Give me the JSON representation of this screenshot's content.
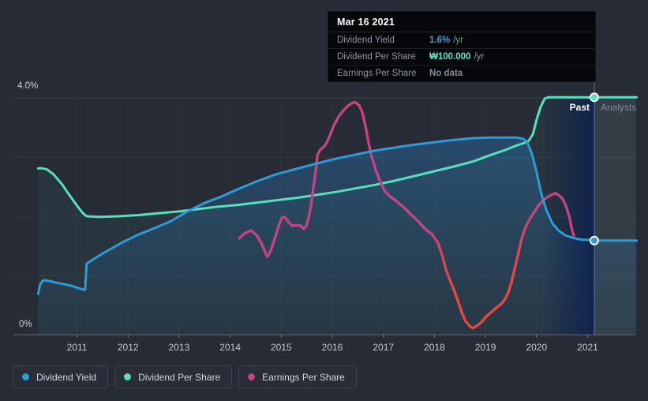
{
  "tooltip": {
    "title": "Mar 16 2021",
    "rows": [
      {
        "label": "Dividend Yield",
        "value": "1.6%",
        "unit": "/yr",
        "value_color": "#3ba1e3"
      },
      {
        "label": "Dividend Per Share",
        "value": "₩100.000",
        "unit": "/yr",
        "value_color": "#65e2c7"
      },
      {
        "label": "Earnings Per Share",
        "value": "No data",
        "unit": "",
        "value_color": "#858c96"
      }
    ]
  },
  "legend": {
    "items": [
      {
        "label": "Dividend Yield",
        "color": "#2e9bd6"
      },
      {
        "label": "Dividend Per Share",
        "color": "#57dfbe"
      },
      {
        "label": "Earnings Per Share",
        "color": "#c64383"
      }
    ]
  },
  "chart_data": {
    "type": "line",
    "title": "",
    "x_ticks": [
      "2011",
      "2012",
      "2013",
      "2014",
      "2015",
      "2016",
      "2017",
      "2018",
      "2019",
      "2020",
      "2021"
    ],
    "x_range": [
      2010.2,
      2021.96
    ],
    "ylim": [
      0,
      4
    ],
    "y_tick_labels": {
      "top": "4.0%",
      "bottom": "0%"
    },
    "grid": true,
    "legend_position": "bottom",
    "divider": {
      "year": 2021.13,
      "past": "Past",
      "future": "Analysts"
    },
    "series": [
      {
        "name": "Dividend Yield",
        "color": "#2e9bd6",
        "width": 3,
        "area": "blue",
        "points": [
          [
            2010.24,
            0.69
          ],
          [
            2010.28,
            0.85
          ],
          [
            2010.34,
            0.92
          ],
          [
            2010.45,
            0.91
          ],
          [
            2010.65,
            0.87
          ],
          [
            2010.88,
            0.83
          ],
          [
            2011.09,
            0.77
          ],
          [
            2011.16,
            0.76
          ],
          [
            2011.18,
            1.05
          ],
          [
            2011.19,
            1.2
          ],
          [
            2011.35,
            1.29
          ],
          [
            2011.58,
            1.41
          ],
          [
            2011.89,
            1.56
          ],
          [
            2012.2,
            1.69
          ],
          [
            2012.52,
            1.8
          ],
          [
            2012.82,
            1.91
          ],
          [
            2013.16,
            2.08
          ],
          [
            2013.51,
            2.23
          ],
          [
            2013.82,
            2.33
          ],
          [
            2014.13,
            2.45
          ],
          [
            2014.52,
            2.59
          ],
          [
            2014.9,
            2.71
          ],
          [
            2015.29,
            2.8
          ],
          [
            2015.68,
            2.89
          ],
          [
            2016.06,
            2.97
          ],
          [
            2016.45,
            3.04
          ],
          [
            2016.83,
            3.11
          ],
          [
            2017.22,
            3.16
          ],
          [
            2017.61,
            3.21
          ],
          [
            2017.99,
            3.25
          ],
          [
            2018.38,
            3.29
          ],
          [
            2018.77,
            3.32
          ],
          [
            2019.08,
            3.33
          ],
          [
            2019.39,
            3.33
          ],
          [
            2019.62,
            3.33
          ],
          [
            2019.74,
            3.31
          ],
          [
            2019.82,
            3.25
          ],
          [
            2019.91,
            3.05
          ],
          [
            2020.0,
            2.75
          ],
          [
            2020.09,
            2.39
          ],
          [
            2020.19,
            2.11
          ],
          [
            2020.31,
            1.88
          ],
          [
            2020.43,
            1.76
          ],
          [
            2020.56,
            1.68
          ],
          [
            2020.7,
            1.64
          ],
          [
            2020.85,
            1.61
          ],
          [
            2021.01,
            1.6
          ],
          [
            2021.13,
            1.59
          ],
          [
            2021.55,
            1.59
          ],
          [
            2021.96,
            1.59
          ]
        ]
      },
      {
        "name": "Dividend Per Share",
        "color": "#57dfbe",
        "width": 3,
        "area": "teal",
        "points": [
          [
            2010.24,
            2.81
          ],
          [
            2010.33,
            2.81
          ],
          [
            2010.42,
            2.79
          ],
          [
            2010.54,
            2.71
          ],
          [
            2010.7,
            2.55
          ],
          [
            2010.85,
            2.36
          ],
          [
            2011.01,
            2.17
          ],
          [
            2011.12,
            2.05
          ],
          [
            2011.19,
            2.0
          ],
          [
            2011.43,
            1.99
          ],
          [
            2011.81,
            2.0
          ],
          [
            2012.2,
            2.02
          ],
          [
            2012.58,
            2.05
          ],
          [
            2012.97,
            2.08
          ],
          [
            2013.36,
            2.12
          ],
          [
            2013.74,
            2.16
          ],
          [
            2014.13,
            2.19
          ],
          [
            2014.52,
            2.23
          ],
          [
            2014.9,
            2.27
          ],
          [
            2015.29,
            2.31
          ],
          [
            2015.68,
            2.36
          ],
          [
            2016.06,
            2.41
          ],
          [
            2016.45,
            2.47
          ],
          [
            2016.83,
            2.53
          ],
          [
            2017.22,
            2.6
          ],
          [
            2017.61,
            2.68
          ],
          [
            2017.99,
            2.76
          ],
          [
            2018.38,
            2.84
          ],
          [
            2018.77,
            2.93
          ],
          [
            2019.08,
            3.03
          ],
          [
            2019.39,
            3.12
          ],
          [
            2019.62,
            3.2
          ],
          [
            2019.76,
            3.24
          ],
          [
            2019.85,
            3.28
          ],
          [
            2019.93,
            3.39
          ],
          [
            2020.0,
            3.63
          ],
          [
            2020.08,
            3.85
          ],
          [
            2020.16,
            3.99
          ],
          [
            2020.23,
            4.01
          ],
          [
            2020.39,
            4.01
          ],
          [
            2021.13,
            4.01
          ],
          [
            2021.96,
            4.01
          ]
        ]
      },
      {
        "name": "Earnings Per Share",
        "color": "#c64383",
        "color_negative": "#e8463e",
        "width": 3.4,
        "points": [
          [
            2014.18,
            1.63
          ],
          [
            2014.28,
            1.71
          ],
          [
            2014.41,
            1.76
          ],
          [
            2014.52,
            1.68
          ],
          [
            2014.61,
            1.55
          ],
          [
            2014.69,
            1.39
          ],
          [
            2014.73,
            1.32
          ],
          [
            2014.79,
            1.41
          ],
          [
            2014.87,
            1.61
          ],
          [
            2014.95,
            1.84
          ],
          [
            2015.01,
            1.97
          ],
          [
            2015.06,
            1.99
          ],
          [
            2015.13,
            1.92
          ],
          [
            2015.21,
            1.84
          ],
          [
            2015.3,
            1.85
          ],
          [
            2015.38,
            1.84
          ],
          [
            2015.44,
            1.79
          ],
          [
            2015.49,
            1.83
          ],
          [
            2015.54,
            1.99
          ],
          [
            2015.58,
            2.17
          ],
          [
            2015.63,
            2.49
          ],
          [
            2015.68,
            2.79
          ],
          [
            2015.71,
            3.04
          ],
          [
            2015.77,
            3.13
          ],
          [
            2015.83,
            3.17
          ],
          [
            2015.89,
            3.24
          ],
          [
            2015.95,
            3.36
          ],
          [
            2016.03,
            3.53
          ],
          [
            2016.12,
            3.68
          ],
          [
            2016.22,
            3.79
          ],
          [
            2016.31,
            3.87
          ],
          [
            2016.4,
            3.92
          ],
          [
            2016.46,
            3.92
          ],
          [
            2016.53,
            3.87
          ],
          [
            2016.59,
            3.75
          ],
          [
            2016.65,
            3.52
          ],
          [
            2016.71,
            3.25
          ],
          [
            2016.77,
            3.01
          ],
          [
            2016.85,
            2.79
          ],
          [
            2016.93,
            2.6
          ],
          [
            2017.02,
            2.44
          ],
          [
            2017.11,
            2.35
          ],
          [
            2017.22,
            2.28
          ],
          [
            2017.38,
            2.17
          ],
          [
            2017.53,
            2.04
          ],
          [
            2017.69,
            1.91
          ],
          [
            2017.84,
            1.77
          ],
          [
            2017.96,
            1.69
          ],
          [
            2018.07,
            1.55
          ],
          [
            2018.15,
            1.35
          ],
          [
            2018.23,
            1.09
          ],
          [
            2018.3,
            0.93
          ],
          [
            2018.38,
            0.76
          ],
          [
            2018.46,
            0.57
          ],
          [
            2018.54,
            0.37
          ],
          [
            2018.61,
            0.23
          ],
          [
            2018.69,
            0.15
          ],
          [
            2018.75,
            0.11
          ],
          [
            2018.83,
            0.15
          ],
          [
            2018.92,
            0.21
          ],
          [
            2019.03,
            0.32
          ],
          [
            2019.14,
            0.4
          ],
          [
            2019.23,
            0.47
          ],
          [
            2019.32,
            0.53
          ],
          [
            2019.39,
            0.61
          ],
          [
            2019.45,
            0.72
          ],
          [
            2019.51,
            0.89
          ],
          [
            2019.57,
            1.11
          ],
          [
            2019.63,
            1.33
          ],
          [
            2019.7,
            1.59
          ],
          [
            2019.76,
            1.76
          ],
          [
            2019.82,
            1.88
          ],
          [
            2019.88,
            1.97
          ],
          [
            2019.96,
            2.08
          ],
          [
            2020.03,
            2.17
          ],
          [
            2020.13,
            2.27
          ],
          [
            2020.22,
            2.33
          ],
          [
            2020.31,
            2.37
          ],
          [
            2020.37,
            2.39
          ],
          [
            2020.43,
            2.36
          ],
          [
            2020.5,
            2.31
          ],
          [
            2020.56,
            2.21
          ],
          [
            2020.6,
            2.11
          ],
          [
            2020.65,
            1.96
          ],
          [
            2020.68,
            1.83
          ],
          [
            2020.71,
            1.73
          ],
          [
            2020.73,
            1.68
          ]
        ]
      }
    ],
    "markers": [
      {
        "series": "Dividend Per Share",
        "year": 2021.13,
        "value_pct": 4.01,
        "label": "₩100.000 /yr"
      },
      {
        "series": "Dividend Yield",
        "year": 2021.13,
        "value_pct": 1.59,
        "label": "1.6% /yr"
      }
    ]
  }
}
